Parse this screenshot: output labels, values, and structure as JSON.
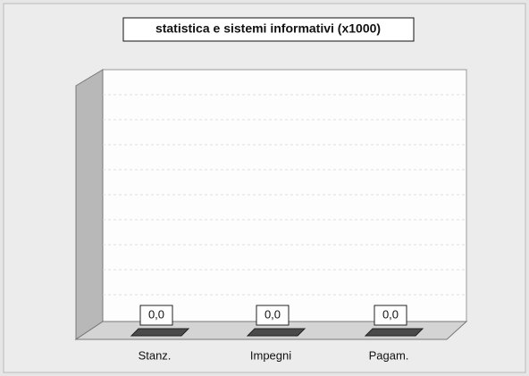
{
  "chart_data": {
    "type": "bar3d",
    "title": "statistica e sistemi informativi (x1000)",
    "categories": [
      "Stanz.",
      "Impegni",
      "Pagam."
    ],
    "values": [
      0,
      0,
      0
    ],
    "value_labels": [
      "0,0",
      "0,0",
      "0,0"
    ],
    "color": "#4a4a4a"
  }
}
